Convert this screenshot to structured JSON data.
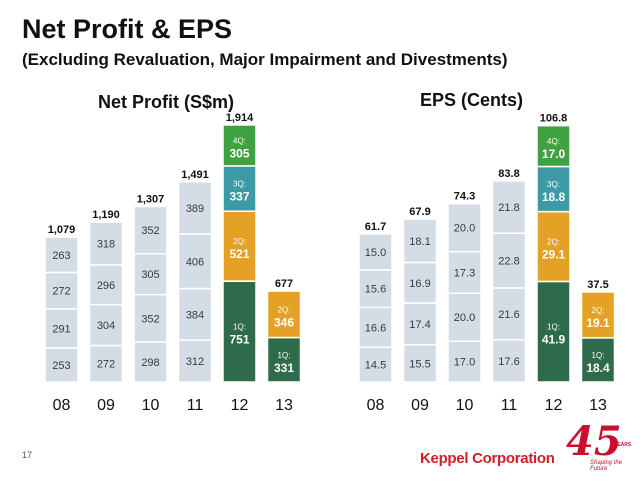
{
  "title": "Net Profit & EPS",
  "subtitle": "(Excluding Revaluation, Major Impairment and Divestments)",
  "chart_data": [
    {
      "type": "bar",
      "stacked": true,
      "title": "Net Profit (S$m)",
      "categories": [
        "08",
        "09",
        "10",
        "11",
        "12",
        "13"
      ],
      "series": [
        {
          "name": "1Q:",
          "values": [
            253,
            272,
            298,
            312,
            751,
            331
          ]
        },
        {
          "name": "2Q:",
          "values": [
            291,
            304,
            352,
            384,
            521,
            346
          ]
        },
        {
          "name": "3Q:",
          "values": [
            272,
            296,
            305,
            406,
            337,
            null
          ]
        },
        {
          "name": "4Q:",
          "values": [
            263,
            318,
            352,
            389,
            305,
            null
          ]
        }
      ],
      "totals": [
        "1,079",
        "1,190",
        "1,307",
        "1,491",
        "1,914",
        "677"
      ],
      "highlight_categories": [
        "12",
        "13"
      ]
    },
    {
      "type": "bar",
      "stacked": true,
      "title": "EPS (Cents)",
      "categories": [
        "08",
        "09",
        "10",
        "11",
        "12",
        "13"
      ],
      "series": [
        {
          "name": "1Q:",
          "values": [
            14.5,
            15.5,
            17.0,
            17.6,
            41.9,
            18.4
          ]
        },
        {
          "name": "2Q:",
          "values": [
            16.6,
            17.4,
            20.0,
            21.6,
            29.1,
            19.1
          ]
        },
        {
          "name": "3Q:",
          "values": [
            15.6,
            16.9,
            17.3,
            22.8,
            18.8,
            null
          ]
        },
        {
          "name": "4Q:",
          "values": [
            15.0,
            18.1,
            20.0,
            21.8,
            17.0,
            null
          ]
        }
      ],
      "totals": [
        "61.7",
        "67.9",
        "74.3",
        "83.8",
        "106.8",
        "37.5"
      ],
      "highlight_categories": [
        "12",
        "13"
      ]
    }
  ],
  "colors": {
    "grey_bar": "#d4dce6",
    "grey_text": "#3a3a3a",
    "q1": "#2e6b4a",
    "q2": "#e5a125",
    "q3": "#3b9aa5",
    "q4": "#3fa13f",
    "brand": "#cc1f26"
  },
  "footer": {
    "page_number": "17",
    "company": "Keppel Corporation",
    "anniversary_number": "45",
    "anniversary_word": "YEARS",
    "anniversary_tagline": "Shaping the Future"
  }
}
